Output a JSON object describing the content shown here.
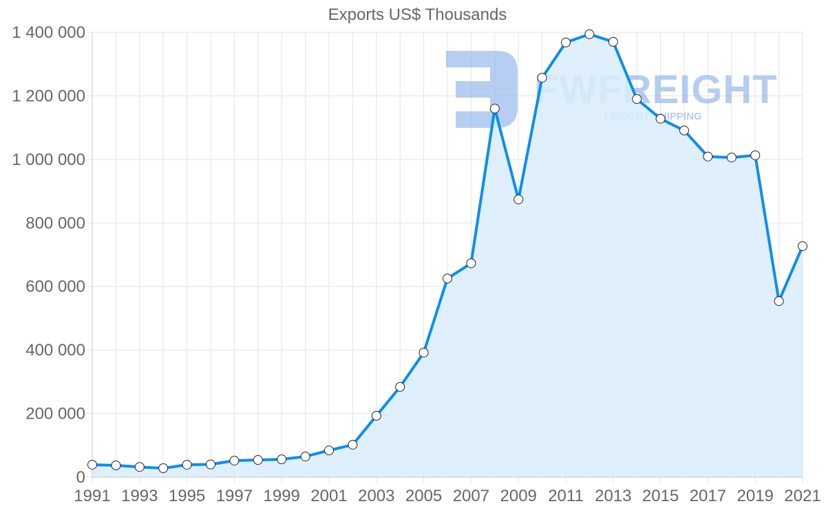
{
  "chart_data": {
    "type": "line",
    "title": "Exports US$ Thousands",
    "xlabel": "",
    "ylabel": "",
    "x": [
      1991,
      1992,
      1993,
      1994,
      1995,
      1996,
      1997,
      1998,
      1999,
      2000,
      2001,
      2002,
      2003,
      2004,
      2005,
      2006,
      2007,
      2008,
      2009,
      2010,
      2011,
      2012,
      2013,
      2014,
      2015,
      2016,
      2017,
      2018,
      2019,
      2020,
      2021
    ],
    "series": [
      {
        "name": "Exports US$ Thousands",
        "values": [
          39000,
          37000,
          32000,
          28000,
          39000,
          40000,
          52000,
          54000,
          56000,
          65000,
          84000,
          102000,
          193000,
          284000,
          392000,
          625000,
          673000,
          1160000,
          874000,
          1257000,
          1368000,
          1394000,
          1370000,
          1190000,
          1128000,
          1091000,
          1009000,
          1006000,
          1013000,
          554000,
          727000
        ]
      }
    ],
    "ylim": [
      0,
      1400000
    ],
    "y_ticks": [
      "0",
      "200 000",
      "400 000",
      "600 000",
      "800 000",
      "1 000 000",
      "1 200 000",
      "1 400 000"
    ],
    "x_tick_labels": [
      "1991",
      "1993",
      "1995",
      "1997",
      "1999",
      "2001",
      "2003",
      "2005",
      "2007",
      "2009",
      "2011",
      "2013",
      "2015",
      "2017",
      "2019",
      "2021"
    ],
    "grid": true,
    "filled_area": true,
    "legend": "none",
    "colors": {
      "line": "#0a8ef0",
      "fill": "#d9ecfc",
      "grid": "#e3e3e3",
      "tick_text": "#666666",
      "point_fill": "#ffffff",
      "point_stroke": "#222222"
    }
  },
  "watermark": {
    "brand": "FWFREIGHT",
    "tagline": "FREIGHT SHIPPING",
    "color": "#8fb3ea"
  }
}
